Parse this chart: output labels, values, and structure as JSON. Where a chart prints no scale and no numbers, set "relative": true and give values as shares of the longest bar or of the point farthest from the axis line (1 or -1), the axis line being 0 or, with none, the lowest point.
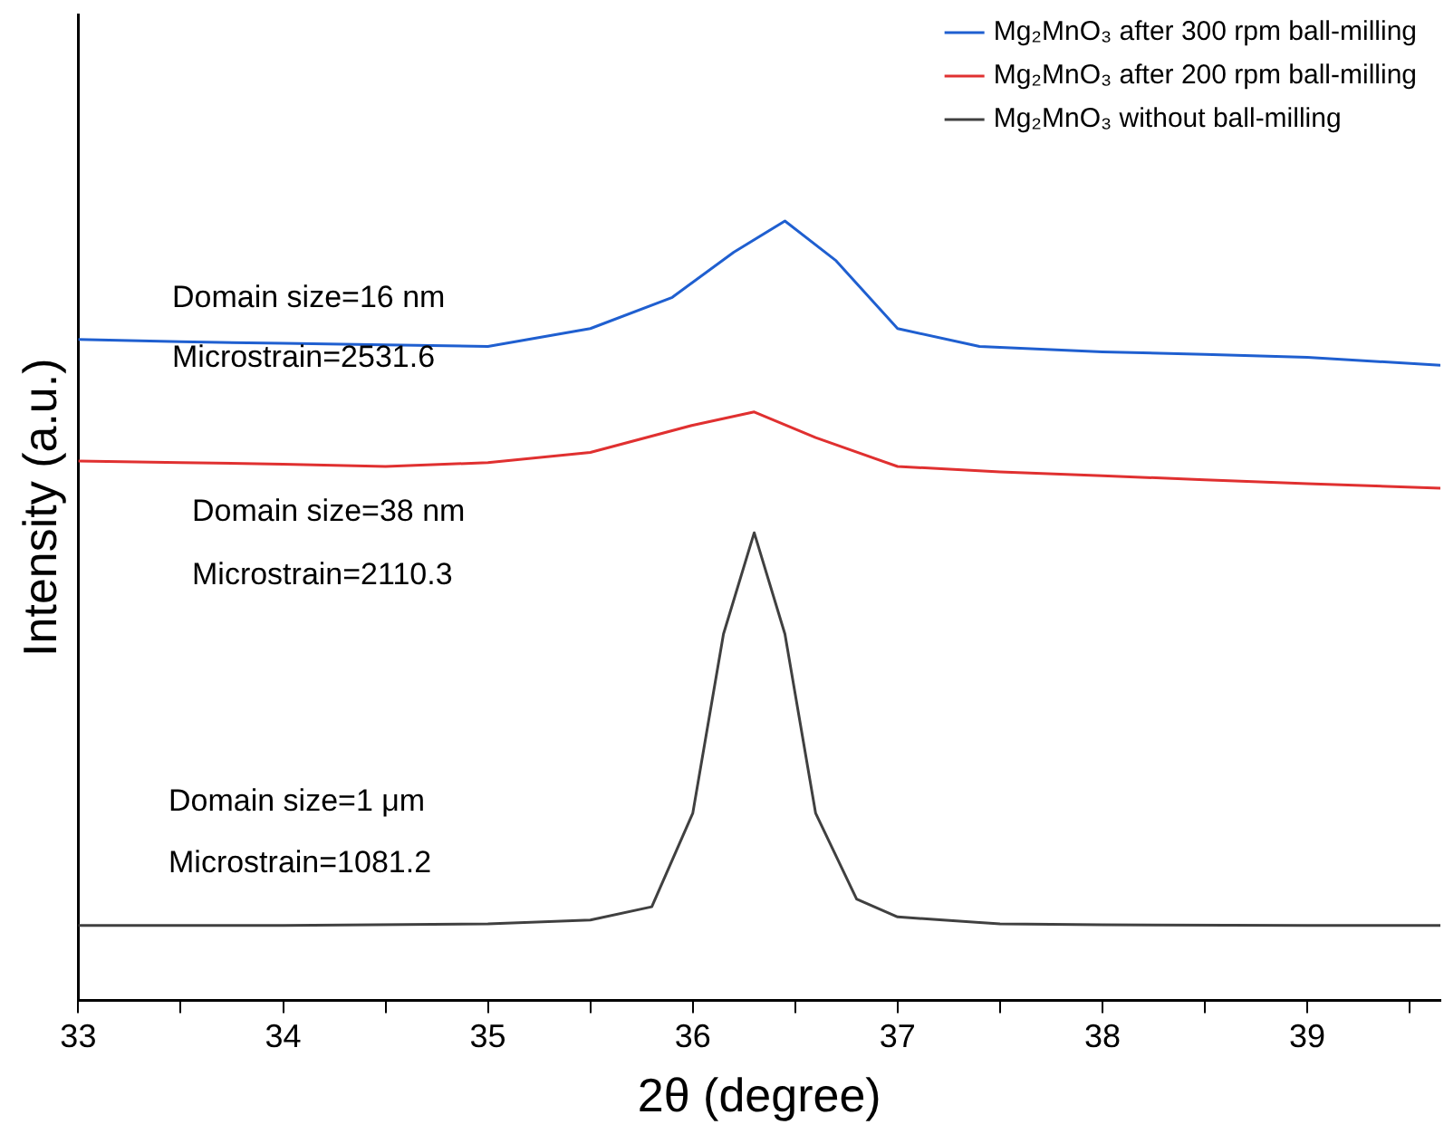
{
  "chart_data": {
    "type": "line",
    "relative": true,
    "xlabel": "2θ (degree)",
    "ylabel": "Intensity (a.u.)",
    "xlim": [
      33,
      39.65
    ],
    "xticks": [
      33,
      {
        "value": 33.5,
        "label": null
      },
      34,
      {
        "value": 34.5,
        "label": null
      },
      35,
      {
        "value": 35.5,
        "label": null
      },
      36,
      {
        "value": 36.5,
        "label": null
      },
      37,
      {
        "value": 37.5,
        "label": null
      },
      38,
      {
        "value": 38.5,
        "label": null
      },
      39,
      {
        "value": 39.5,
        "label": null
      }
    ],
    "legend": "top right",
    "marker": "none",
    "grid": false,
    "series": [
      {
        "name": "Mg₂MnO₃ after 300 rpm ball-milling",
        "color": "#1f5fd0",
        "x": [
          33,
          33.5,
          34,
          34.5,
          35,
          35.5,
          35.9,
          36.2,
          36.45,
          36.7,
          37,
          37.4,
          38,
          38.5,
          39,
          39.65
        ],
        "values": [
          0.848,
          0.845,
          0.843,
          0.841,
          0.839,
          0.862,
          0.902,
          0.96,
          1.0,
          0.949,
          0.862,
          0.839,
          0.832,
          0.829,
          0.825,
          0.815
        ]
      },
      {
        "name": "Mg₂MnO₃ after 200 rpm ball-milling",
        "color": "#e03030",
        "x": [
          33,
          33.5,
          34,
          34.5,
          35,
          35.5,
          36,
          36.3,
          36.6,
          37,
          37.5,
          38,
          38.5,
          39,
          39.65
        ],
        "values": [
          0.692,
          0.69,
          0.688,
          0.685,
          0.69,
          0.703,
          0.738,
          0.755,
          0.722,
          0.685,
          0.678,
          0.673,
          0.668,
          0.663,
          0.657
        ]
      },
      {
        "name": "Mg₂MnO₃ without ball-milling",
        "color": "#404040",
        "x": [
          33,
          34,
          35,
          35.5,
          35.8,
          36,
          36.15,
          36.3,
          36.45,
          36.6,
          36.8,
          37,
          37.5,
          38,
          39,
          39.65
        ],
        "values": [
          0.096,
          0.096,
          0.098,
          0.103,
          0.12,
          0.24,
          0.47,
          0.6,
          0.47,
          0.24,
          0.13,
          0.107,
          0.098,
          0.097,
          0.096,
          0.096
        ]
      }
    ],
    "annotations": [
      "Domain size=16 nm",
      "Microstrain=2531.6",
      "Domain size=38 nm",
      "Microstrain=2110.3",
      "Domain size=1 μm",
      "Microstrain=1081.2"
    ]
  }
}
